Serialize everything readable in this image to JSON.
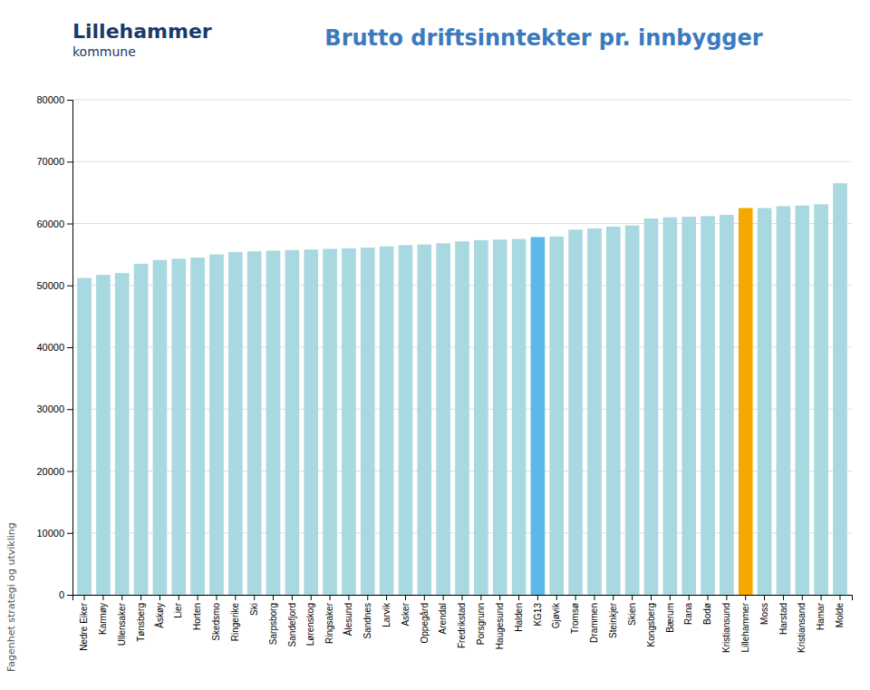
{
  "chart_data": {
    "type": "bar",
    "title": "Brutto driftsinntekter pr. innbygger",
    "annotations": [
      "Lillehammer",
      "kommune",
      "Fagenhet strategi og utvikling"
    ],
    "categories": [
      "Nedre Eiker",
      "Karmøy",
      "Ullensaker",
      "Tønsberg",
      "Åskøy",
      "Lier",
      "Horten",
      "Skedsmo",
      "Ringerike",
      "Ski",
      "Sarpsborg",
      "Sandefjord",
      "Lørenskog",
      "Ringsaker",
      "Ålesund",
      "Sandnes",
      "Larvik",
      "Asker",
      "Oppegård",
      "Arendal",
      "Fredrikstad",
      "Porsgrunn",
      "Haugesund",
      "Halden",
      "KG13",
      "Gjøvik",
      "Tromsø",
      "Drammen",
      "Steinkjer",
      "Skien",
      "Kongsberg",
      "Bærum",
      "Rana",
      "Bodø",
      "Kristiansund",
      "Lillehammer",
      "Moss",
      "Harstad",
      "Kristiansand",
      "Hamar",
      "Molde"
    ],
    "values": [
      51200,
      51700,
      52000,
      53500,
      54100,
      54300,
      54500,
      55000,
      55400,
      55500,
      55600,
      55700,
      55800,
      55900,
      56000,
      56100,
      56300,
      56500,
      56600,
      56800,
      57100,
      57300,
      57400,
      57500,
      57800,
      57900,
      59000,
      59200,
      59500,
      59700,
      60800,
      61000,
      61100,
      61200,
      61400,
      62500,
      62500,
      62800,
      62900,
      63100,
      66500
    ],
    "colors": [
      "#a8d8e0",
      "#a8d8e0",
      "#a8d8e0",
      "#a8d8e0",
      "#a8d8e0",
      "#a8d8e0",
      "#a8d8e0",
      "#a8d8e0",
      "#a8d8e0",
      "#a8d8e0",
      "#a8d8e0",
      "#a8d8e0",
      "#a8d8e0",
      "#a8d8e0",
      "#a8d8e0",
      "#a8d8e0",
      "#a8d8e0",
      "#a8d8e0",
      "#a8d8e0",
      "#a8d8e0",
      "#a8d8e0",
      "#a8d8e0",
      "#a8d8e0",
      "#a8d8e0",
      "#5bb8e8",
      "#a8d8e0",
      "#a8d8e0",
      "#a8d8e0",
      "#a8d8e0",
      "#a8d8e0",
      "#a8d8e0",
      "#a8d8e0",
      "#a8d8e0",
      "#a8d8e0",
      "#a8d8e0",
      "#f5a800",
      "#a8d8e0",
      "#a8d8e0",
      "#a8d8e0",
      "#a8d8e0",
      "#a8d8e0"
    ],
    "ylim": [
      0,
      80000
    ],
    "yticks": [
      0,
      10000,
      20000,
      30000,
      40000,
      50000,
      60000,
      70000,
      80000
    ],
    "grid": true
  }
}
